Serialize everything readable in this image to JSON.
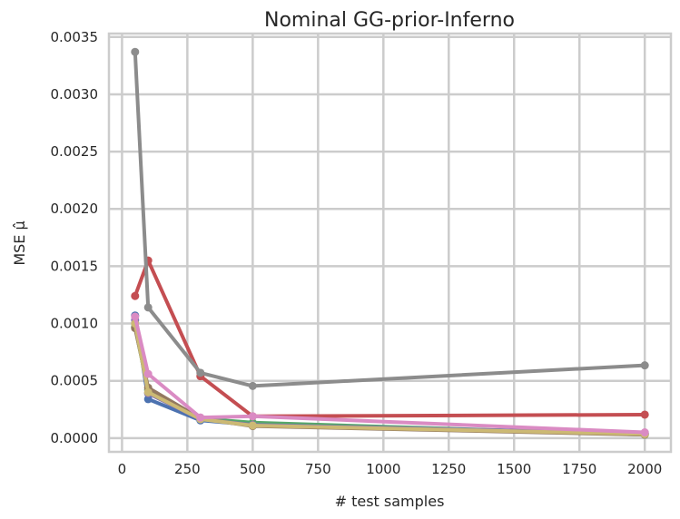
{
  "chart_data": {
    "type": "line",
    "title": "Nominal GG-prior-Inferno",
    "xlabel": "# test samples",
    "ylabel": "MSE μ̂",
    "xlim": [
      -50,
      2100
    ],
    "ylim": [
      -0.00012,
      0.00353
    ],
    "xticks": [
      0,
      250,
      500,
      750,
      1000,
      1250,
      1500,
      1750,
      2000
    ],
    "yticks": [
      0.0,
      0.0005,
      0.001,
      0.0015,
      0.002,
      0.0025,
      0.003,
      0.0035
    ],
    "ytick_labels": [
      "0.0000",
      "0.0005",
      "0.0010",
      "0.0015",
      "0.0020",
      "0.0025",
      "0.0030",
      "0.0035"
    ],
    "grid": true,
    "x": [
      50,
      100,
      300,
      500,
      2000
    ],
    "series": [
      {
        "color": "#4c72b0",
        "values": [
          0.00107,
          0.00034,
          0.000155,
          0.000115,
          4e-05
        ]
      },
      {
        "color": "#55a868",
        "values": [
          0.00097,
          0.00042,
          0.00017,
          0.000135,
          3e-05
        ]
      },
      {
        "color": "#c44e52",
        "values": [
          0.00124,
          0.00155,
          0.00054,
          0.00019,
          0.000205
        ]
      },
      {
        "color": "#8172b2",
        "values": [
          0.00103,
          0.00039,
          0.000165,
          0.000115,
          4e-05
        ]
      },
      {
        "color": "#937860",
        "values": [
          0.00096,
          0.00044,
          0.00017,
          0.000105,
          3e-05
        ]
      },
      {
        "color": "#ccb974",
        "values": [
          0.001,
          0.0004,
          0.000165,
          0.00011,
          3.5e-05
        ]
      },
      {
        "color": "#8c8c8c",
        "values": [
          0.00337,
          0.00114,
          0.00057,
          0.000455,
          0.000635
        ]
      },
      {
        "color": "#da8bc3",
        "values": [
          0.00106,
          0.00056,
          0.00018,
          0.00019,
          5e-05
        ]
      }
    ]
  }
}
